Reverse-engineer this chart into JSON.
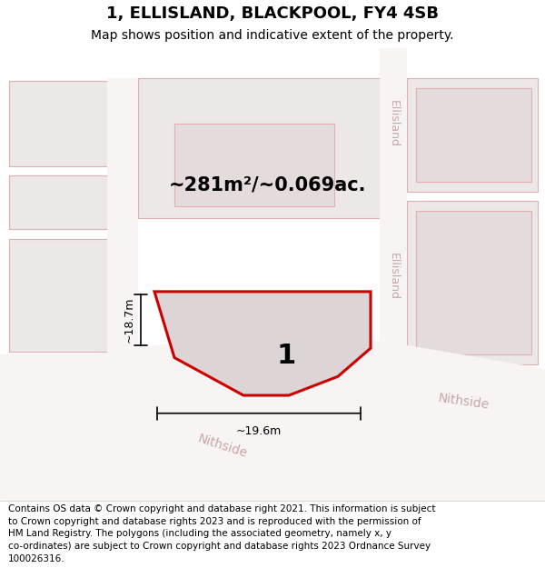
{
  "title": "1, ELLISLAND, BLACKPOOL, FY4 4SB",
  "subtitle": "Map shows position and indicative extent of the property.",
  "footer_lines": [
    "Contains OS data © Crown copyright and database right 2021. This information is subject",
    "to Crown copyright and database rights 2023 and is reproduced with the permission of",
    "HM Land Registry. The polygons (including the associated geometry, namely x, y",
    "co-ordinates) are subject to Crown copyright and database rights 2023 Ordnance Survey",
    "100026316."
  ],
  "area_text": "~281m²/~0.069ac.",
  "measurement_h": "~18.7m",
  "measurement_w": "~19.6m",
  "label": "1",
  "background_color": "#f5f0f0",
  "plot_edge_color": "#cc0000",
  "road_label_color": "#c8a8a8",
  "title_fontsize": 13,
  "subtitle_fontsize": 10,
  "footer_fontsize": 7.5
}
